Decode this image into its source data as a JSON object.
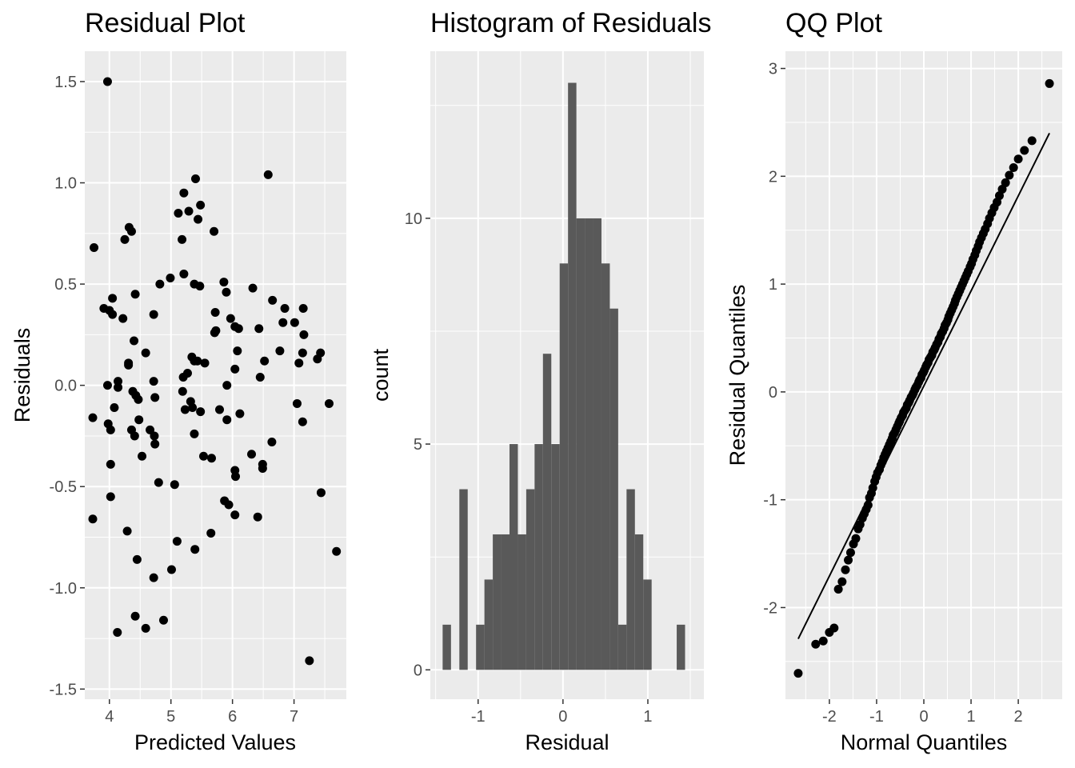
{
  "chart_data": [
    {
      "type": "scatter",
      "title": "Residual Plot",
      "xlabel": "Predicted Values",
      "ylabel": "Residuals",
      "xlim": [
        3.6,
        7.85
      ],
      "ylim": [
        -1.55,
        1.65
      ],
      "x_ticks": [
        {
          "value": 4,
          "label": "4"
        },
        {
          "value": 5,
          "label": "5"
        },
        {
          "value": 6,
          "label": "6"
        },
        {
          "value": 7,
          "label": "7"
        }
      ],
      "y_ticks": [
        {
          "value": 1.5,
          "label": "1.5"
        },
        {
          "value": 1.0,
          "label": "1.0"
        },
        {
          "value": 0.5,
          "label": "0.5"
        },
        {
          "value": 0.0,
          "label": "0.0"
        },
        {
          "value": -0.5,
          "label": "-0.5"
        },
        {
          "value": -1.0,
          "label": "-1.0"
        },
        {
          "value": -1.5,
          "label": "-1.5"
        }
      ],
      "grid": true,
      "points": [
        [
          3.97,
          1.5
        ],
        [
          3.75,
          0.68
        ],
        [
          3.91,
          0.38
        ],
        [
          4.0,
          0.37
        ],
        [
          4.05,
          0.43
        ],
        [
          4.05,
          0.35
        ],
        [
          4.25,
          0.72
        ],
        [
          4.32,
          0.78
        ],
        [
          4.36,
          0.76
        ],
        [
          4.42,
          0.45
        ],
        [
          4.22,
          0.33
        ],
        [
          4.4,
          0.22
        ],
        [
          4.31,
          0.11
        ],
        [
          4.31,
          0.1
        ],
        [
          4.59,
          0.16
        ],
        [
          4.72,
          0.35
        ],
        [
          4.82,
          0.5
        ],
        [
          4.99,
          0.53
        ],
        [
          3.97,
          0.0
        ],
        [
          4.14,
          0.02
        ],
        [
          4.14,
          -0.01
        ],
        [
          4.08,
          -0.11
        ],
        [
          4.38,
          -0.03
        ],
        [
          4.43,
          -0.05
        ],
        [
          4.47,
          -0.07
        ],
        [
          4.72,
          0.02
        ],
        [
          4.74,
          -0.06
        ],
        [
          3.73,
          -0.16
        ],
        [
          3.98,
          -0.19
        ],
        [
          4.02,
          -0.22
        ],
        [
          4.36,
          -0.22
        ],
        [
          4.41,
          -0.25
        ],
        [
          4.48,
          -0.17
        ],
        [
          4.66,
          -0.22
        ],
        [
          4.73,
          -0.25
        ],
        [
          4.74,
          -0.29
        ],
        [
          4.53,
          -0.35
        ],
        [
          4.02,
          -0.39
        ],
        [
          4.02,
          -0.55
        ],
        [
          3.73,
          -0.66
        ],
        [
          4.29,
          -0.72
        ],
        [
          4.45,
          -0.86
        ],
        [
          4.72,
          -0.95
        ],
        [
          4.8,
          -0.48
        ],
        [
          5.06,
          -0.49
        ],
        [
          4.42,
          -1.14
        ],
        [
          4.59,
          -1.2
        ],
        [
          4.13,
          -1.22
        ],
        [
          4.88,
          -1.16
        ],
        [
          5.01,
          -0.91
        ],
        [
          5.1,
          -0.77
        ],
        [
          5.21,
          0.95
        ],
        [
          5.4,
          1.02
        ],
        [
          5.12,
          0.85
        ],
        [
          5.29,
          0.86
        ],
        [
          5.44,
          0.82
        ],
        [
          5.48,
          0.89
        ],
        [
          5.18,
          0.72
        ],
        [
          5.21,
          0.55
        ],
        [
          5.38,
          0.5
        ],
        [
          5.47,
          0.49
        ],
        [
          5.7,
          0.76
        ],
        [
          5.86,
          0.51
        ],
        [
          5.9,
          0.46
        ],
        [
          5.72,
          0.36
        ],
        [
          5.34,
          0.14
        ],
        [
          5.38,
          0.12
        ],
        [
          5.43,
          0.12
        ],
        [
          5.55,
          0.11
        ],
        [
          5.27,
          0.06
        ],
        [
          5.2,
          0.04
        ],
        [
          5.19,
          -0.03
        ],
        [
          5.32,
          -0.08
        ],
        [
          5.23,
          -0.12
        ],
        [
          5.35,
          -0.11
        ],
        [
          5.48,
          -0.13
        ],
        [
          5.71,
          0.26
        ],
        [
          5.73,
          0.27
        ],
        [
          5.97,
          0.33
        ],
        [
          6.04,
          0.29
        ],
        [
          6.1,
          0.28
        ],
        [
          6.08,
          0.17
        ],
        [
          6.04,
          0.08
        ],
        [
          5.91,
          0.0
        ],
        [
          5.79,
          -0.12
        ],
        [
          5.91,
          -0.17
        ],
        [
          6.12,
          -0.14
        ],
        [
          5.38,
          -0.24
        ],
        [
          5.53,
          -0.35
        ],
        [
          5.66,
          -0.36
        ],
        [
          5.87,
          -0.57
        ],
        [
          5.94,
          -0.59
        ],
        [
          6.04,
          -0.42
        ],
        [
          6.05,
          -0.45
        ],
        [
          6.04,
          -0.64
        ],
        [
          5.65,
          -0.73
        ],
        [
          5.39,
          -0.81
        ],
        [
          6.33,
          0.48
        ],
        [
          6.58,
          1.04
        ],
        [
          6.65,
          0.42
        ],
        [
          6.43,
          0.28
        ],
        [
          6.52,
          0.12
        ],
        [
          6.45,
          0.04
        ],
        [
          6.77,
          0.17
        ],
        [
          6.85,
          0.38
        ],
        [
          6.82,
          0.31
        ],
        [
          7.01,
          0.31
        ],
        [
          7.15,
          0.38
        ],
        [
          7.16,
          0.25
        ],
        [
          7.08,
          0.11
        ],
        [
          7.14,
          0.16
        ],
        [
          7.38,
          0.13
        ],
        [
          7.43,
          0.16
        ],
        [
          7.05,
          -0.09
        ],
        [
          7.14,
          -0.18
        ],
        [
          7.57,
          -0.09
        ],
        [
          6.31,
          -0.34
        ],
        [
          6.49,
          -0.39
        ],
        [
          6.49,
          -0.41
        ],
        [
          6.64,
          -0.28
        ],
        [
          6.41,
          -0.65
        ],
        [
          7.69,
          -0.82
        ],
        [
          7.44,
          -0.53
        ],
        [
          7.25,
          -1.36
        ]
      ],
      "point_color": "#000000"
    },
    {
      "type": "bar",
      "title": "Histogram of Residuals",
      "xlabel": "Residual",
      "ylabel": "count",
      "xlim": [
        -1.563,
        1.66
      ],
      "ylim": [
        -0.65,
        13.7
      ],
      "x_ticks": [
        {
          "value": -1,
          "label": "-1"
        },
        {
          "value": 0,
          "label": "0"
        },
        {
          "value": 1,
          "label": "1"
        }
      ],
      "y_ticks": [
        {
          "value": 0,
          "label": "0"
        },
        {
          "value": 5,
          "label": "5"
        },
        {
          "value": 10,
          "label": "10"
        }
      ],
      "grid": true,
      "bin_start": -1.418,
      "bin_width": 0.0985,
      "counts": [
        1,
        0,
        4,
        0,
        1,
        2,
        3,
        3,
        5,
        3,
        4,
        5,
        7,
        5,
        9,
        13,
        10,
        10,
        10,
        9,
        8,
        1,
        4,
        3,
        2,
        0,
        0,
        0,
        1
      ],
      "bar_color": "#595959"
    },
    {
      "type": "scatter",
      "title": "QQ Plot",
      "xlabel": "Normal Quantiles",
      "ylabel": "Residual Quantiles",
      "xlim": [
        -2.93,
        2.93
      ],
      "ylim": [
        -2.85,
        3.16
      ],
      "x_ticks": [
        {
          "value": -2,
          "label": "-2"
        },
        {
          "value": -1,
          "label": "-1"
        },
        {
          "value": 0,
          "label": "0"
        },
        {
          "value": 1,
          "label": "1"
        },
        {
          "value": 2,
          "label": "2"
        }
      ],
      "y_ticks": [
        {
          "value": 3,
          "label": "3"
        },
        {
          "value": 2,
          "label": "2"
        },
        {
          "value": 1,
          "label": "1"
        },
        {
          "value": 0,
          "label": "0"
        },
        {
          "value": -1,
          "label": "-1"
        },
        {
          "value": -2,
          "label": "-2"
        }
      ],
      "grid": true,
      "points": [
        [
          -2.66,
          -2.61
        ],
        [
          -2.29,
          -2.34
        ],
        [
          -2.13,
          -2.31
        ],
        [
          -2.0,
          -2.23
        ],
        [
          -1.9,
          -2.19
        ],
        [
          -1.81,
          -1.83
        ],
        [
          -1.73,
          -1.76
        ],
        [
          -1.66,
          -1.65
        ],
        [
          -1.6,
          -1.56
        ],
        [
          -1.55,
          -1.49
        ],
        [
          -1.49,
          -1.41
        ],
        [
          -1.44,
          -1.36
        ],
        [
          -1.39,
          -1.27
        ],
        [
          -1.35,
          -1.23
        ],
        [
          -1.3,
          -1.17
        ],
        [
          -1.26,
          -1.13
        ],
        [
          -1.22,
          -1.09
        ],
        [
          -1.18,
          -1.05
        ],
        [
          -1.15,
          -0.98
        ],
        [
          -1.11,
          -0.94
        ],
        [
          -1.08,
          -0.89
        ],
        [
          -1.04,
          -0.83
        ],
        [
          -1.01,
          -0.79
        ],
        [
          -0.98,
          -0.75
        ],
        [
          -0.94,
          -0.72
        ],
        [
          -0.91,
          -0.68
        ],
        [
          -0.88,
          -0.65
        ],
        [
          -0.85,
          -0.61
        ],
        [
          -0.82,
          -0.58
        ],
        [
          -0.79,
          -0.55
        ],
        [
          -0.76,
          -0.52
        ],
        [
          -0.73,
          -0.49
        ],
        [
          -0.7,
          -0.46
        ],
        [
          -0.67,
          -0.43
        ],
        [
          -0.65,
          -0.4
        ],
        [
          -0.62,
          -0.38
        ],
        [
          -0.59,
          -0.35
        ],
        [
          -0.56,
          -0.32
        ],
        [
          -0.53,
          -0.29
        ],
        [
          -0.51,
          -0.27
        ],
        [
          -0.48,
          -0.24
        ],
        [
          -0.45,
          -0.22
        ],
        [
          -0.43,
          -0.19
        ],
        [
          -0.4,
          -0.17
        ],
        [
          -0.37,
          -0.15
        ],
        [
          -0.35,
          -0.12
        ],
        [
          -0.32,
          -0.1
        ],
        [
          -0.3,
          -0.08
        ],
        [
          -0.27,
          -0.05
        ],
        [
          -0.24,
          -0.03
        ],
        [
          -0.22,
          -0.01
        ],
        [
          -0.19,
          0.02
        ],
        [
          -0.17,
          0.04
        ],
        [
          -0.14,
          0.06
        ],
        [
          -0.11,
          0.09
        ],
        [
          -0.09,
          0.11
        ],
        [
          -0.06,
          0.13
        ],
        [
          -0.04,
          0.16
        ],
        [
          -0.01,
          0.18
        ],
        [
          0.01,
          0.2
        ],
        [
          0.04,
          0.23
        ],
        [
          0.06,
          0.25
        ],
        [
          0.09,
          0.27
        ],
        [
          0.11,
          0.3
        ],
        [
          0.14,
          0.32
        ],
        [
          0.17,
          0.34
        ],
        [
          0.19,
          0.37
        ],
        [
          0.22,
          0.39
        ],
        [
          0.24,
          0.41
        ],
        [
          0.27,
          0.44
        ],
        [
          0.3,
          0.46
        ],
        [
          0.32,
          0.49
        ],
        [
          0.35,
          0.51
        ],
        [
          0.37,
          0.54
        ],
        [
          0.4,
          0.56
        ],
        [
          0.43,
          0.59
        ],
        [
          0.45,
          0.62
        ],
        [
          0.48,
          0.64
        ],
        [
          0.51,
          0.67
        ],
        [
          0.53,
          0.7
        ],
        [
          0.56,
          0.73
        ],
        [
          0.59,
          0.76
        ],
        [
          0.62,
          0.79
        ],
        [
          0.65,
          0.82
        ],
        [
          0.67,
          0.85
        ],
        [
          0.7,
          0.88
        ],
        [
          0.73,
          0.91
        ],
        [
          0.76,
          0.94
        ],
        [
          0.79,
          0.97
        ],
        [
          0.82,
          1.0
        ],
        [
          0.85,
          1.03
        ],
        [
          0.88,
          1.06
        ],
        [
          0.91,
          1.09
        ],
        [
          0.94,
          1.12
        ],
        [
          0.98,
          1.16
        ],
        [
          1.01,
          1.19
        ],
        [
          1.04,
          1.23
        ],
        [
          1.08,
          1.27
        ],
        [
          1.11,
          1.31
        ],
        [
          1.15,
          1.35
        ],
        [
          1.18,
          1.39
        ],
        [
          1.22,
          1.43
        ],
        [
          1.26,
          1.47
        ],
        [
          1.3,
          1.51
        ],
        [
          1.35,
          1.56
        ],
        [
          1.39,
          1.61
        ],
        [
          1.44,
          1.66
        ],
        [
          1.49,
          1.71
        ],
        [
          1.55,
          1.76
        ],
        [
          1.6,
          1.82
        ],
        [
          1.66,
          1.88
        ],
        [
          1.73,
          1.94
        ],
        [
          1.81,
          2.01
        ],
        [
          1.9,
          2.08
        ],
        [
          2.0,
          2.16
        ],
        [
          2.13,
          2.24
        ],
        [
          2.29,
          2.33
        ],
        [
          2.66,
          2.86
        ]
      ],
      "reference_line": {
        "x": [
          -2.66,
          2.66
        ],
        "y": [
          -2.29,
          2.4
        ]
      },
      "point_color": "#000000"
    }
  ]
}
